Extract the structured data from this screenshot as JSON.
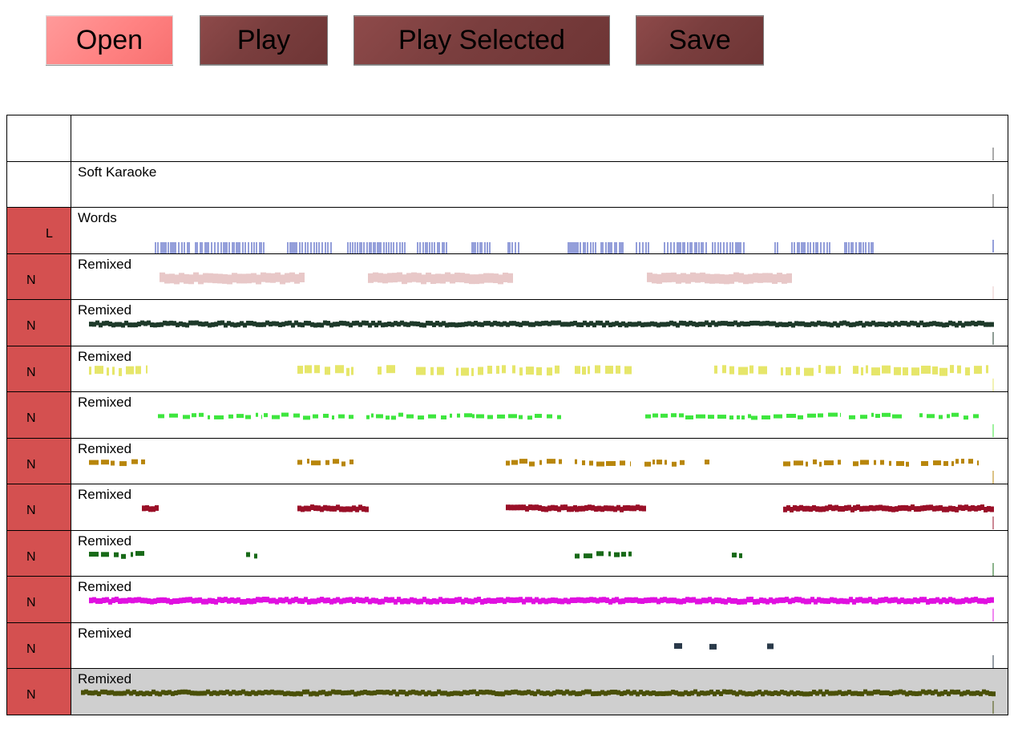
{
  "toolbar": {
    "buttons": [
      {
        "id": "open",
        "label": "Open",
        "active": true
      },
      {
        "id": "play",
        "label": "Play",
        "active": false
      },
      {
        "id": "play-selected",
        "label": "Play Selected",
        "active": false
      },
      {
        "id": "save",
        "label": "Save",
        "active": false
      }
    ]
  },
  "tracks": [
    {
      "side": "",
      "name": "",
      "kind": "blank"
    },
    {
      "side": "",
      "name": "Soft Karaoke",
      "kind": "blank"
    },
    {
      "side": "L",
      "name": "Words",
      "kind": "ticks",
      "color": "#2a3fb5",
      "segments": [
        [
          105,
          150
        ],
        [
          155,
          240
        ],
        [
          270,
          325
        ],
        [
          345,
          418
        ],
        [
          432,
          468
        ],
        [
          500,
          525
        ],
        [
          545,
          558
        ],
        [
          620,
          655
        ],
        [
          661,
          690
        ],
        [
          705,
          720
        ],
        [
          740,
          792
        ],
        [
          800,
          840
        ],
        [
          878,
          884
        ],
        [
          899,
          948
        ],
        [
          965,
          1000
        ]
      ]
    },
    {
      "side": "N",
      "name": "Remixed",
      "kind": "blobs",
      "color": "#e8c8c8",
      "thickness": 12,
      "segments": [
        [
          110,
          285
        ],
        [
          370,
          545
        ],
        [
          718,
          893
        ]
      ]
    },
    {
      "side": "N",
      "name": "Remixed",
      "kind": "dense",
      "color": "#1e3a2a",
      "thickness": 6,
      "segments": [
        [
          22,
          1150
        ]
      ]
    },
    {
      "side": "N",
      "name": "Remixed",
      "kind": "dashes",
      "color": "#e6e66a",
      "thickness": 10,
      "segments": [
        [
          22,
          95
        ],
        [
          282,
          352
        ],
        [
          382,
          405
        ],
        [
          430,
          468
        ],
        [
          480,
          545
        ],
        [
          550,
          610
        ],
        [
          628,
          700
        ],
        [
          802,
          868
        ],
        [
          885,
          960
        ],
        [
          975,
          1145
        ]
      ]
    },
    {
      "side": "N",
      "name": "Remixed",
      "kind": "dashes",
      "color": "#3ee63e",
      "thickness": 5,
      "segments": [
        [
          108,
          238
        ],
        [
          240,
          352
        ],
        [
          368,
          500
        ],
        [
          500,
          612
        ],
        [
          716,
          848
        ],
        [
          848,
          960
        ],
        [
          970,
          1040
        ],
        [
          1058,
          1132
        ]
      ]
    },
    {
      "side": "N",
      "name": "Remixed",
      "kind": "dashes",
      "color": "#b8860b",
      "thickness": 6,
      "segments": [
        [
          22,
          92
        ],
        [
          282,
          352
        ],
        [
          542,
          612
        ],
        [
          628,
          698
        ],
        [
          715,
          765
        ],
        [
          790,
          796
        ],
        [
          888,
          960
        ],
        [
          975,
          1045
        ],
        [
          1060,
          1132
        ]
      ]
    },
    {
      "side": "N",
      "name": "Remixed",
      "kind": "dense",
      "color": "#9a1028",
      "thickness": 7,
      "segments": [
        [
          88,
          108
        ],
        [
          282,
          368
        ],
        [
          542,
          628
        ],
        [
          628,
          715
        ],
        [
          888,
          976
        ],
        [
          975,
          1062
        ],
        [
          1062,
          1148
        ]
      ]
    },
    {
      "side": "N",
      "name": "Remixed",
      "kind": "dashes",
      "color": "#186a18",
      "thickness": 6,
      "segments": [
        [
          22,
          92
        ],
        [
          218,
          232
        ],
        [
          628,
          700
        ],
        [
          824,
          838
        ]
      ]
    },
    {
      "side": "N",
      "name": "Remixed",
      "kind": "dense",
      "color": "#e010e0",
      "thickness": 7,
      "segments": [
        [
          22,
          1150
        ]
      ]
    },
    {
      "side": "N",
      "name": "Remixed",
      "kind": "dashes",
      "color": "#2a3a4a",
      "thickness": 7,
      "segments": [
        [
          752,
          762
        ],
        [
          796,
          808
        ],
        [
          868,
          878
        ]
      ]
    },
    {
      "side": "N",
      "name": "Remixed",
      "kind": "dense",
      "color": "#4a5008",
      "thickness": 6,
      "shaded": true,
      "segments": [
        [
          12,
          1150
        ]
      ]
    }
  ]
}
